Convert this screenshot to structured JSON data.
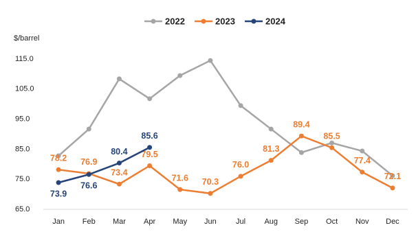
{
  "chart_data": {
    "type": "line",
    "y_label": "$/barrel",
    "categories": [
      "Jan",
      "Feb",
      "Mar",
      "Apr",
      "May",
      "Jun",
      "Jul",
      "Aug",
      "Sep",
      "Oct",
      "Nov",
      "Dec"
    ],
    "series": [
      {
        "name": "2022",
        "color": "#a5a5a5",
        "values": [
          82.8,
          91.7,
          108.4,
          101.8,
          109.5,
          114.5,
          99.5,
          91.7,
          83.9,
          87.1,
          84.4,
          76.2
        ]
      },
      {
        "name": "2023",
        "color": "#ed7d31",
        "values": [
          78.2,
          76.9,
          73.4,
          79.5,
          71.6,
          70.3,
          76.0,
          81.3,
          89.4,
          85.5,
          77.4,
          72.1
        ],
        "value_labels": [
          "78.2",
          "76.9",
          "73.4",
          "79.5",
          "71.6",
          "70.3",
          "76.0",
          "81.3",
          "89.4",
          "85.5",
          "77.4",
          "72.1"
        ]
      },
      {
        "name": "2024",
        "color": "#264478",
        "values": [
          73.9,
          76.6,
          80.4,
          85.6,
          null,
          null,
          null,
          null,
          null,
          null,
          null,
          null
        ],
        "value_labels": [
          "73.9",
          "76.6",
          "80.4",
          "85.6",
          null,
          null,
          null,
          null,
          null,
          null,
          null,
          null
        ]
      }
    ],
    "ylim": [
      65,
      115
    ],
    "yticks": [
      {
        "value": 65,
        "label": "65.0"
      },
      {
        "value": 75,
        "label": "75.0"
      },
      {
        "value": 85,
        "label": "85.0"
      },
      {
        "value": 95,
        "label": "95.0"
      },
      {
        "value": 105,
        "label": "105.0"
      },
      {
        "value": 115,
        "label": "115.0"
      }
    ],
    "grid": false,
    "legend": "top"
  }
}
